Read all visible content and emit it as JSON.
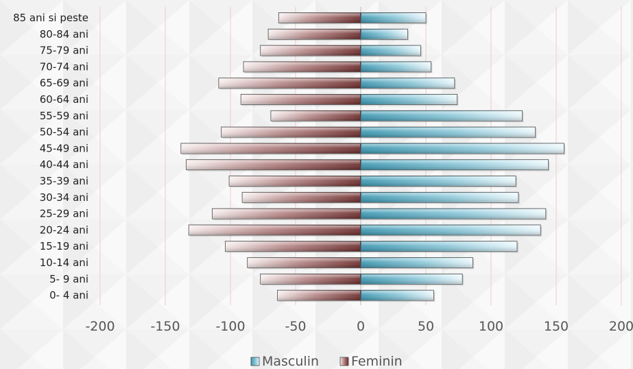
{
  "chart_data": {
    "type": "bar",
    "orientation": "horizontal",
    "categories": [
      "85 ani si peste",
      "80-84 ani",
      "75-79 ani",
      "70-74 ani",
      "65-69 ani",
      "60-64 ani",
      "55-59 ani",
      "50-54 ani",
      "45-49 ani",
      "40-44 ani",
      "35-39 ani",
      "30-34 ani",
      "25-29 ani",
      "20-24 ani",
      "15-19 ani",
      "10-14 ani",
      "5- 9 ani",
      "0- 4 ani"
    ],
    "series": [
      {
        "name": "Masculin",
        "values": [
          50,
          36,
          46,
          54,
          72,
          74,
          124,
          134,
          156,
          144,
          119,
          121,
          142,
          138,
          120,
          86,
          78,
          56
        ],
        "color": "#4aa6c0"
      },
      {
        "name": "Feminin",
        "values": [
          -63,
          -71,
          -77,
          -90,
          -109,
          -92,
          -69,
          -107,
          -138,
          -134,
          -101,
          -91,
          -114,
          -132,
          -104,
          -87,
          -77,
          -64
        ],
        "color": "#8a4a4a"
      }
    ],
    "xlim": [
      -200,
      200
    ],
    "xticks": [
      -200,
      -150,
      -100,
      -50,
      0,
      50,
      100,
      150,
      200
    ],
    "tick_labels": [
      "-200",
      "-150",
      "-100",
      "-50",
      "0",
      "50",
      "100",
      "150",
      "200"
    ],
    "grid": true,
    "legend_position": "bottom",
    "title": "",
    "xlabel": "",
    "ylabel": ""
  }
}
